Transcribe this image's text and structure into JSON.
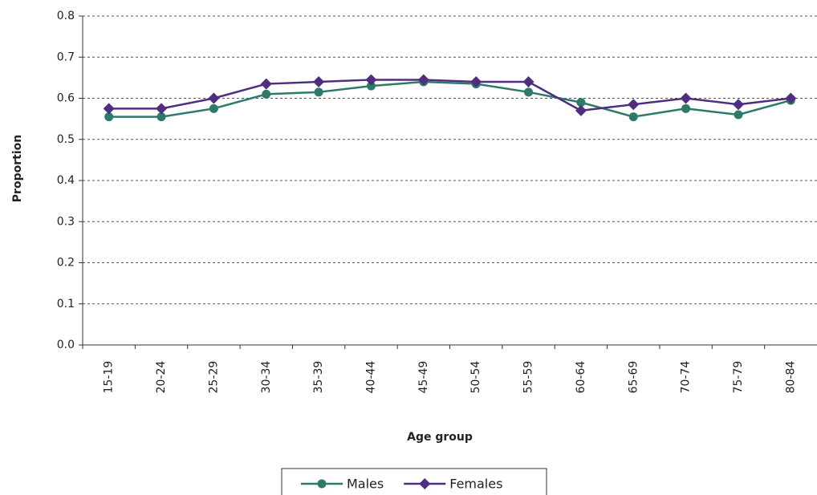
{
  "chart_data": {
    "type": "line",
    "x_label": "Age group",
    "y_label": "Proportion",
    "categories": [
      "15-19",
      "20-24",
      "25-29",
      "30-34",
      "35-39",
      "40-44",
      "45-49",
      "50-54",
      "55-59",
      "60-64",
      "65-69",
      "70-74",
      "75-79",
      "80-84"
    ],
    "series": [
      {
        "name": "Males",
        "color": "#2e7a6a",
        "marker": "circle",
        "values": [
          0.555,
          0.555,
          0.575,
          0.61,
          0.615,
          0.63,
          0.64,
          0.635,
          0.615,
          0.59,
          0.555,
          0.575,
          0.56,
          0.595
        ]
      },
      {
        "name": "Females",
        "color": "#4f2d7f",
        "marker": "diamond",
        "values": [
          0.575,
          0.575,
          0.6,
          0.635,
          0.64,
          0.645,
          0.645,
          0.64,
          0.64,
          0.57,
          0.585,
          0.6,
          0.585,
          0.6
        ]
      }
    ],
    "ylim": [
      0,
      0.8
    ],
    "yticks": [
      {
        "value": 0,
        "label": "0.0"
      },
      0.1,
      0.2,
      0.3,
      0.4,
      0.5,
      0.6,
      0.7,
      0.8
    ],
    "grid": true,
    "legend": "bottom"
  }
}
